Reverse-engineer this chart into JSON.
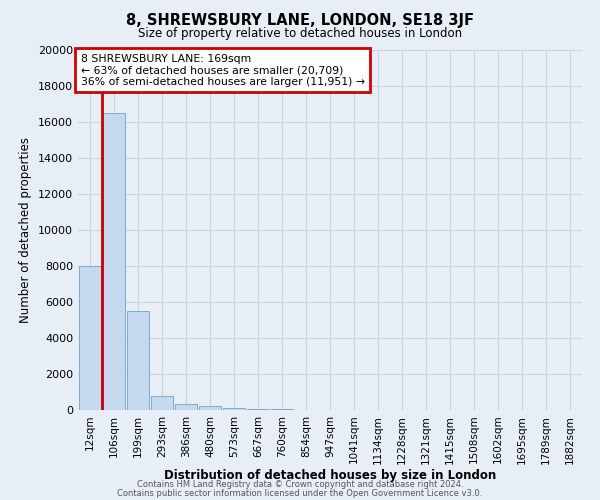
{
  "title": "8, SHREWSBURY LANE, LONDON, SE18 3JF",
  "subtitle": "Size of property relative to detached houses in London",
  "xlabel": "Distribution of detached houses by size in London",
  "ylabel": "Number of detached properties",
  "bar_labels": [
    "12sqm",
    "106sqm",
    "199sqm",
    "293sqm",
    "386sqm",
    "480sqm",
    "573sqm",
    "667sqm",
    "760sqm",
    "854sqm",
    "947sqm",
    "1041sqm",
    "1134sqm",
    "1228sqm",
    "1321sqm",
    "1415sqm",
    "1508sqm",
    "1602sqm",
    "1695sqm",
    "1789sqm",
    "1882sqm"
  ],
  "bar_values": [
    8000,
    16500,
    5500,
    800,
    350,
    200,
    120,
    80,
    50,
    10,
    5,
    3,
    2,
    2,
    2,
    2,
    2,
    2,
    2,
    2,
    2
  ],
  "bar_color": "#c5d8ee",
  "bar_edge_color": "#7aadd4",
  "red_line_x": 0.5,
  "red_line_color": "#cc0000",
  "annotation_box_color": "#cc0000",
  "annotation_text_line1": "8 SHREWSBURY LANE: 169sqm",
  "annotation_text_line2": "← 63% of detached houses are smaller (20,709)",
  "annotation_text_line3": "36% of semi-detached houses are larger (11,951) →",
  "ylim": [
    0,
    20000
  ],
  "yticks": [
    0,
    2000,
    4000,
    6000,
    8000,
    10000,
    12000,
    14000,
    16000,
    18000,
    20000
  ],
  "grid_color": "#c8d4e0",
  "bg_color": "#e8eef5",
  "footer_line1": "Contains HM Land Registry data © Crown copyright and database right 2024.",
  "footer_line2": "Contains public sector information licensed under the Open Government Licence v3.0."
}
